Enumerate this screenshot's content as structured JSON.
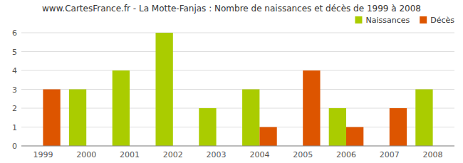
{
  "chart_data": {
    "type": "bar",
    "title": "www.CartesFrance.fr - La Motte-Fanjas : Nombre de naissances et décès de 1999 à 2008",
    "categories": [
      "1999",
      "2000",
      "2001",
      "2002",
      "2003",
      "2004",
      "2005",
      "2006",
      "2007",
      "2008"
    ],
    "series": [
      {
        "name": "Naissances",
        "color": "#aacc00",
        "values": [
          0,
          3,
          4,
          6,
          2,
          3,
          0,
          2,
          0,
          3
        ]
      },
      {
        "name": "Décès",
        "color": "#dd5500",
        "values": [
          3,
          0,
          0,
          0,
          0,
          1,
          4,
          1,
          2,
          0
        ]
      }
    ],
    "ylim": [
      0,
      6
    ],
    "yticks": [
      0,
      1,
      2,
      3,
      4,
      5,
      6
    ],
    "grid": true,
    "legend": "upper right"
  }
}
